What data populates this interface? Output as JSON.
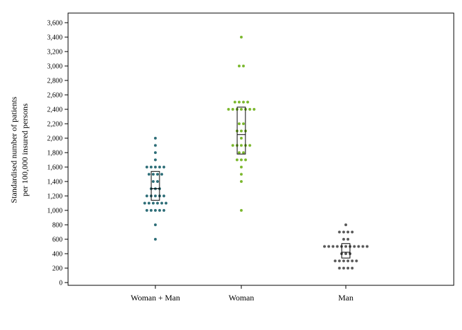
{
  "chart_data": {
    "type": "scatter",
    "subtype": "dot-strip-plot-with-box",
    "title": "",
    "xlabel": "",
    "ylabel_lines": [
      "Standardised number of patients",
      "per 100,000 insured persons"
    ],
    "ylim": [
      0,
      3600
    ],
    "yticks": [
      0,
      200,
      400,
      600,
      800,
      1000,
      1200,
      1400,
      1600,
      1800,
      2000,
      2200,
      2400,
      2600,
      2800,
      3000,
      3200,
      3400,
      3600
    ],
    "ytick_labels": [
      "0",
      "200",
      "400",
      "600",
      "800",
      "1,000",
      "1,200",
      "1,400",
      "1,600",
      "1,800",
      "2,000",
      "2,200",
      "2,400",
      "2,600",
      "2,800",
      "3,000",
      "3,200",
      "3,400",
      "3,600"
    ],
    "grid": false,
    "legend": "none",
    "categories": [
      "Woman + Man",
      "Woman",
      "Man"
    ],
    "series": [
      {
        "category": "Woman + Man",
        "color": "#2e6e78",
        "values": [
          2000,
          1900,
          1800,
          1700,
          1600,
          1600,
          1600,
          1600,
          1600,
          1500,
          1500,
          1500,
          1500,
          1400,
          1400,
          1300,
          1300,
          1300,
          1200,
          1200,
          1200,
          1200,
          1200,
          1100,
          1100,
          1100,
          1100,
          1100,
          1100,
          1000,
          1000,
          1000,
          1000,
          1000,
          800,
          600
        ],
        "box": {
          "q1": 1140,
          "median": 1300,
          "q3": 1540
        }
      },
      {
        "category": "Woman",
        "color": "#7cb82f",
        "values": [
          3400,
          3000,
          3000,
          2500,
          2500,
          2500,
          2500,
          2400,
          2400,
          2400,
          2400,
          2400,
          2400,
          2400,
          2200,
          2200,
          2100,
          2100,
          2100,
          2000,
          1900,
          1900,
          1900,
          1900,
          1900,
          1800,
          1800,
          1700,
          1700,
          1700,
          1600,
          1500,
          1400,
          1000
        ],
        "box": {
          "q1": 1780,
          "median": 2050,
          "q3": 2430
        }
      },
      {
        "category": "Man",
        "color": "#5a5a5a",
        "values": [
          800,
          700,
          700,
          700,
          700,
          600,
          600,
          500,
          500,
          500,
          500,
          500,
          500,
          500,
          500,
          500,
          500,
          500,
          400,
          400,
          400,
          300,
          300,
          300,
          300,
          300,
          300,
          200,
          200,
          200,
          200
        ],
        "box": {
          "q1": 340,
          "median": 420,
          "q3": 540
        }
      }
    ]
  }
}
